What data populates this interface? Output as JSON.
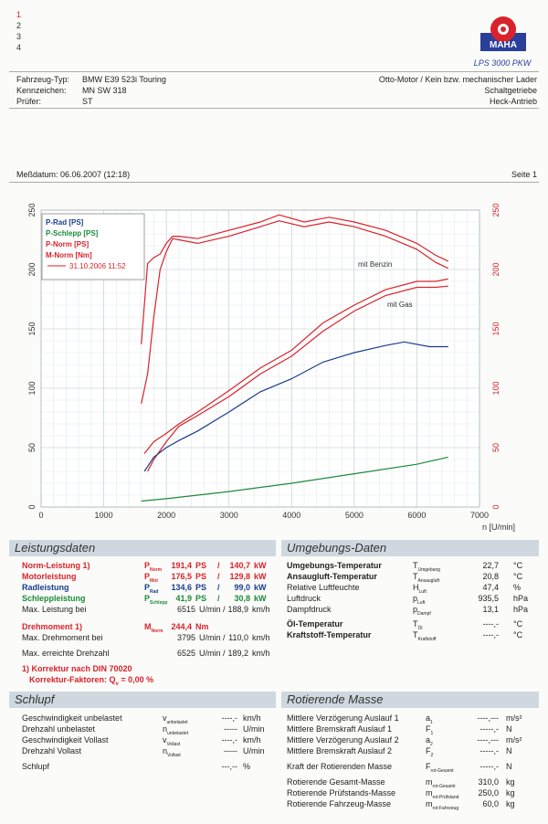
{
  "header": {
    "curve_numbers": [
      "1",
      "2",
      "3",
      "4"
    ],
    "logo_text": "MAHA",
    "logo_sub": "LPS 3000 PKW",
    "vehicle_label": "Fahrzeug-Typ:",
    "vehicle": "BMW E39 523i Touring",
    "plate_label": "Kennzeichen:",
    "plate": "MN SW 318",
    "tester_label": "Prüfer:",
    "tester": "ST",
    "right1": "Otto-Motor / Kein bzw. mechanischer Lader",
    "right2": "Schaltgetriebe",
    "right3": "Heck-Antrieb",
    "date": "Meßdatum: 06.06.2007 (12:18)",
    "page": "Seite 1"
  },
  "chart_data": {
    "type": "line",
    "xlabel": "n [U/min]",
    "xlim": [
      0,
      7000
    ],
    "ylim": [
      0,
      250
    ],
    "y2lim": [
      0,
      250
    ],
    "x_ticks": [
      "0",
      "1000",
      "2000",
      "3000",
      "4000",
      "5000",
      "6000",
      "7000"
    ],
    "y_ticks": [
      "0",
      "50",
      "100",
      "150",
      "200",
      "250"
    ],
    "grid": true,
    "legend_position": "top-left",
    "legend": [
      {
        "label": "P-Rad [PS]",
        "color": "#1a3d8f"
      },
      {
        "label": "P-Schlepp [PS]",
        "color": "#1b8a3a"
      },
      {
        "label": "P-Norm [PS]",
        "color": "#d8232a"
      },
      {
        "label": "M-Norm [Nm]",
        "color": "#d8232a"
      },
      {
        "label": "31.10.2006 11:52",
        "color": "#d8232a"
      }
    ],
    "annotations": [
      "mit Benzin",
      "mit Gas"
    ],
    "series": [
      {
        "name": "M-Norm [Nm] mit Benzin",
        "color": "#d8232a",
        "x": [
          1600,
          1700,
          1800,
          1900,
          2000,
          2100,
          2200,
          2500,
          3000,
          3500,
          3800,
          4200,
          4600,
          5000,
          5500,
          6000,
          6300,
          6500
        ],
        "y": [
          137,
          205,
          210,
          213,
          222,
          228,
          228,
          226,
          233,
          240,
          246,
          240,
          244,
          240,
          233,
          222,
          212,
          207
        ]
      },
      {
        "name": "M-Norm [Nm] mit Gas",
        "color": "#d8232a",
        "x": [
          1600,
          1700,
          1800,
          1900,
          2000,
          2100,
          2200,
          2500,
          3000,
          3500,
          3800,
          4200,
          4600,
          5000,
          5500,
          6000,
          6300,
          6500
        ],
        "y": [
          87,
          112,
          160,
          200,
          215,
          226,
          225,
          222,
          228,
          236,
          241,
          236,
          240,
          236,
          228,
          217,
          206,
          201
        ]
      },
      {
        "name": "P-Norm [PS] mit Benzin",
        "color": "#d8232a",
        "x": [
          1650,
          1800,
          2000,
          2200,
          2500,
          3000,
          3500,
          4000,
          4500,
          5000,
          5500,
          6000,
          6300,
          6500
        ],
        "y": [
          45,
          55,
          62,
          70,
          80,
          98,
          117,
          132,
          155,
          170,
          183,
          190,
          190,
          192
        ]
      },
      {
        "name": "P-Norm [PS] mit Gas",
        "color": "#d8232a",
        "x": [
          1700,
          1800,
          2000,
          2200,
          2500,
          3000,
          3500,
          4000,
          4500,
          5000,
          5500,
          6000,
          6300,
          6500
        ],
        "y": [
          30,
          40,
          55,
          68,
          77,
          93,
          112,
          127,
          148,
          165,
          178,
          185,
          185,
          186
        ]
      },
      {
        "name": "P-Rad [PS]",
        "color": "#1a3d8f",
        "x": [
          1650,
          1800,
          2000,
          2200,
          2500,
          3000,
          3500,
          4000,
          4500,
          5000,
          5500,
          5800,
          6200,
          6500
        ],
        "y": [
          30,
          42,
          50,
          56,
          64,
          80,
          97,
          108,
          122,
          130,
          136,
          139,
          135,
          135
        ]
      },
      {
        "name": "P-Schlepp [PS]",
        "color": "#1b8a3a",
        "x": [
          1600,
          2000,
          3000,
          4000,
          5000,
          6000,
          6500
        ],
        "y": [
          5,
          7,
          13,
          20,
          28,
          36,
          42
        ]
      }
    ]
  },
  "leistung": {
    "title": "Leistungsdaten",
    "rows": [
      {
        "label": "Norm-Leistung",
        "sup": "1)",
        "sym": "P",
        "sub": "Norm",
        "v1": "191,4",
        "u1": "PS",
        "sep": "/",
        "v2": "140,7",
        "u2": "kW"
      },
      {
        "label": "Motorleistung",
        "sup": "",
        "sym": "P",
        "sub": "Mot",
        "v1": "176,5",
        "u1": "PS",
        "sep": "/",
        "v2": "129,8",
        "u2": "kW"
      },
      {
        "label": "Radleistung",
        "sup": "",
        "sym": "P",
        "sub": "Rad",
        "v1": "134,6",
        "u1": "PS",
        "sep": "/",
        "v2": "99,0",
        "u2": "kW"
      },
      {
        "label": "Schleppleistung",
        "sup": "",
        "sym": "P",
        "sub": "Schlepp",
        "v1": "41,9",
        "u1": "PS",
        "sep": "/",
        "v2": "30,8",
        "u2": "kW"
      }
    ],
    "max_label": "Max. Leistung bei",
    "max_n": "6515",
    "max_nu": "U/min /",
    "max_v": "188,9",
    "max_vu": "km/h",
    "dreh_label": "Drehmoment",
    "dreh_sup": "1)",
    "dreh_sym": "M",
    "dreh_sub": "Norm",
    "dreh_v": "244,4",
    "dreh_u": "Nm",
    "maxdreh_label": "Max. Drehmoment bei",
    "maxdreh_n": "3795",
    "maxdreh_nu": "U/min /",
    "maxdreh_v": "110,0",
    "maxdreh_vu": "km/h",
    "maxn_label": "Max. erreichte Drehzahl",
    "maxn_n": "6525",
    "maxn_nu": "U/min /",
    "maxn_v": "189,2",
    "maxn_vu": "km/h",
    "korr1": "1) Korrektur nach DIN 70020",
    "korr2": "Korrektur-Faktoren: Q",
    "korr2_sub": "v",
    "korr2_val": "=   0,00 %"
  },
  "umgebung": {
    "title": "Umgebungs-Daten",
    "rows": [
      {
        "label": "Umgebungs-Temperatur",
        "sym": "T",
        "sub": "Umgebung",
        "v": "22,7",
        "u": "°C"
      },
      {
        "label": "Ansaugluft-Temperatur",
        "sym": "T",
        "sub": "Ansaugluft",
        "v": "20,8",
        "u": "°C"
      },
      {
        "label": "Relative Luftfeuchte",
        "sym": "H",
        "sub": "Luft",
        "v": "47,4",
        "u": "%"
      },
      {
        "label": "Luftdruck",
        "sym": "p",
        "sub": "Luft",
        "v": "935,5",
        "u": "hPa"
      },
      {
        "label": "Dampfdruck",
        "sym": "p",
        "sub": "Dampf",
        "v": "13,1",
        "u": "hPa"
      },
      {
        "label": "Öl-Temperatur",
        "sym": "T",
        "sub": "Öl",
        "v": "----,-",
        "u": "°C"
      },
      {
        "label": "Kraftstoff-Temperatur",
        "sym": "T",
        "sub": "Kraftstoff",
        "v": "----,-",
        "u": "°C"
      }
    ]
  },
  "schlupf": {
    "title": "Schlupf",
    "rows": [
      {
        "label": "Geschwindigkeit unbelastet",
        "sym": "v",
        "sub": "unbelastet",
        "v": "----,-",
        "u": "km/h"
      },
      {
        "label": "Drehzahl unbelastet",
        "sym": "n",
        "sub": "unbelastet",
        "v": "-----",
        "u": "U/min"
      },
      {
        "label": "Geschwindigkeit Vollast",
        "sym": "v",
        "sub": "Vollast",
        "v": "----,-",
        "u": "km/h"
      },
      {
        "label": "Drehzahl Vollast",
        "sym": "n",
        "sub": "Vollast",
        "v": "-----",
        "u": "U/min"
      },
      {
        "label": "Schlupf",
        "sym": "",
        "sub": "",
        "v": "---,--",
        "u": "%"
      }
    ]
  },
  "rotierend": {
    "title": "Rotierende Masse",
    "rows": [
      {
        "label": "Mittlere Verzögerung Auslauf 1",
        "sym": "a",
        "sub": "1",
        "v": "----,---",
        "u": "m/s²"
      },
      {
        "label": "Mittlere Bremskraft Auslauf 1",
        "sym": "F",
        "sub": "1",
        "v": "-----,-",
        "u": "N"
      },
      {
        "label": "Mittlere Verzögerung Auslauf 2",
        "sym": "a",
        "sub": "2",
        "v": "----,---",
        "u": "m/s²"
      },
      {
        "label": "Mittlere Bremskraft Auslauf 2",
        "sym": "F",
        "sub": "2",
        "v": "-----,-",
        "u": "N"
      },
      {
        "label": "Kraft der Rotierenden Masse",
        "sym": "F",
        "sub": "rot-Gesamt",
        "v": "-----,-",
        "u": "N"
      },
      {
        "label": "Rotierende Gesamt-Masse",
        "sym": "m",
        "sub": "rot-Gesamt",
        "v": "310,0",
        "u": "kg"
      },
      {
        "label": "Rotierende Prüfstands-Masse",
        "sym": "m",
        "sub": "rot-Prüfstand",
        "v": "250,0",
        "u": "kg"
      },
      {
        "label": "Rotierende Fahrzeug-Masse",
        "sym": "m",
        "sub": "rot-Fahrzeug",
        "v": "60,0",
        "u": "kg"
      }
    ]
  }
}
